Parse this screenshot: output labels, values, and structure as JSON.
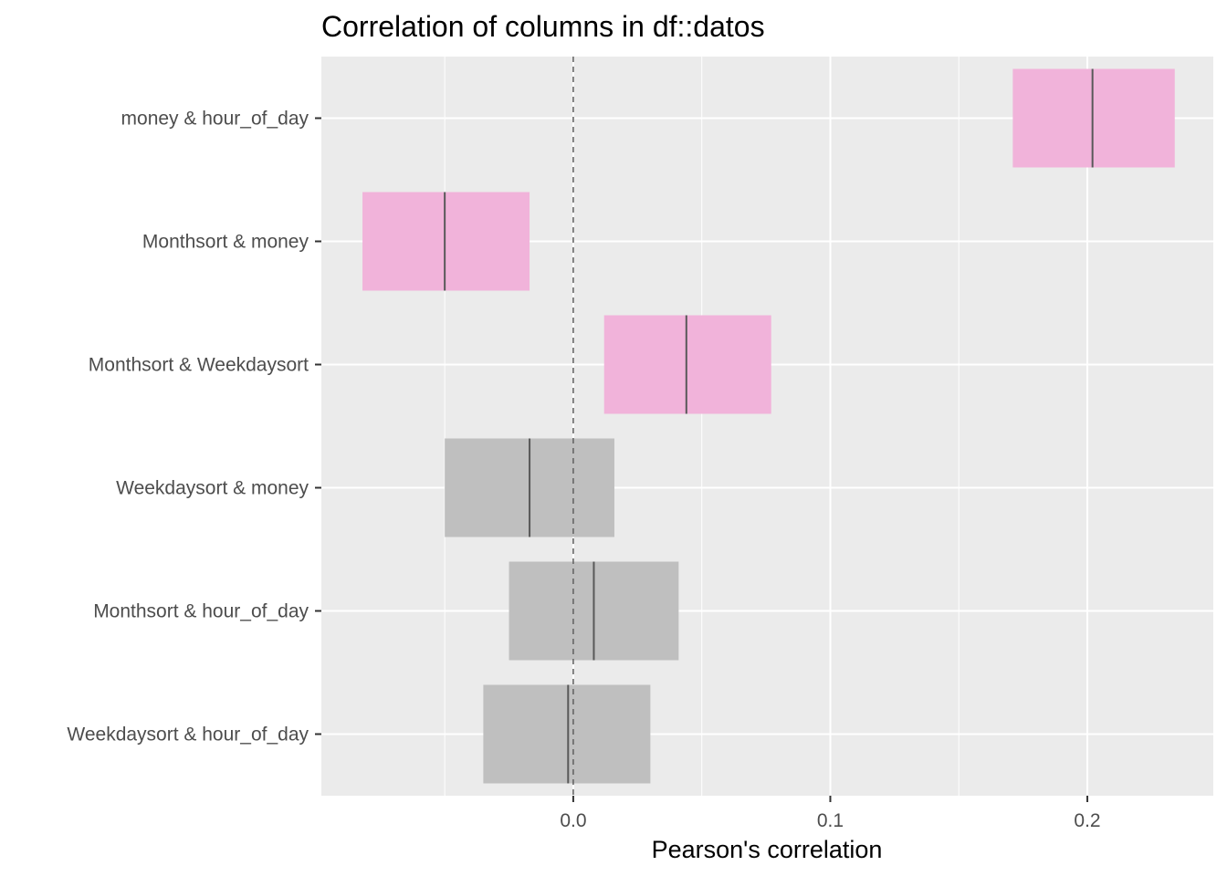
{
  "chart_data": {
    "type": "crossbar",
    "title": "Correlation of columns in df::datos",
    "xlabel": "Pearson's correlation",
    "ylabel": "",
    "xlim": [
      -0.098,
      0.249
    ],
    "x_ticks": [
      0.0,
      0.1,
      0.2
    ],
    "x_tick_labels": [
      "0.0",
      "0.1",
      "0.2"
    ],
    "reference_line": {
      "x": 0.0,
      "style": "dashed"
    },
    "grid": true,
    "legend": "none",
    "colors": {
      "significant": "#f1b3da",
      "not_significant": "#bfbfbf",
      "panel_background": "#ebebeb",
      "grid": "#ffffff",
      "estimate_line": "#595959"
    },
    "categories": [
      "money & hour_of_day",
      "Monthsort & money",
      "Monthsort & Weekdaysort",
      "Weekdaysort & money",
      "Monthsort & hour_of_day",
      "Weekdaysort & hour_of_day"
    ],
    "rows": [
      {
        "label": "money & hour_of_day",
        "estimate": 0.202,
        "lower": 0.171,
        "upper": 0.234,
        "significant": true
      },
      {
        "label": "Monthsort & money",
        "estimate": -0.05,
        "lower": -0.082,
        "upper": -0.017,
        "significant": true
      },
      {
        "label": "Monthsort & Weekdaysort",
        "estimate": 0.044,
        "lower": 0.012,
        "upper": 0.077,
        "significant": true
      },
      {
        "label": "Weekdaysort & money",
        "estimate": -0.017,
        "lower": -0.05,
        "upper": 0.016,
        "significant": false
      },
      {
        "label": "Monthsort & hour_of_day",
        "estimate": 0.008,
        "lower": -0.025,
        "upper": 0.041,
        "significant": false
      },
      {
        "label": "Weekdaysort & hour_of_day",
        "estimate": -0.002,
        "lower": -0.035,
        "upper": 0.03,
        "significant": false
      }
    ]
  }
}
